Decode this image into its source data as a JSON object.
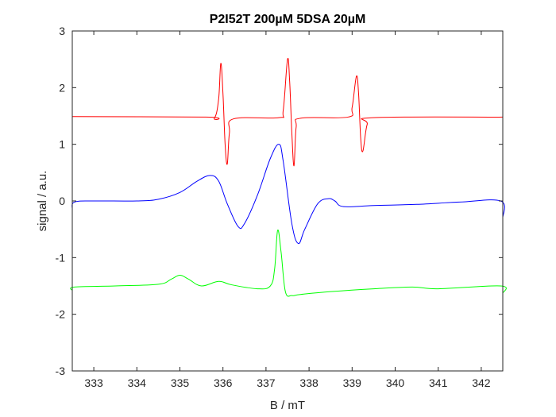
{
  "chart_data": {
    "type": "line",
    "title": "P2I52T 200µM 5DSA 20µM",
    "xlabel": "B / mT",
    "ylabel": "signal / a.u.",
    "xlim": [
      332.5,
      342.5
    ],
    "ylim": [
      -3,
      3
    ],
    "xticks": [
      333,
      334,
      335,
      336,
      337,
      338,
      339,
      340,
      341,
      342
    ],
    "yticks": [
      3,
      2,
      1,
      0,
      -1,
      -2,
      -3
    ],
    "grid": false,
    "legend": null,
    "series": [
      {
        "color": "#ff0000",
        "points": [
          [
            332.5,
            1.49
          ],
          [
            335.6,
            1.48
          ],
          [
            335.8,
            1.46
          ],
          [
            335.9,
            1.8
          ],
          [
            335.95,
            2.43
          ],
          [
            336.0,
            1.9
          ],
          [
            336.05,
            1.0
          ],
          [
            336.1,
            0.65
          ],
          [
            336.15,
            1.2
          ],
          [
            336.25,
            1.45
          ],
          [
            337.3,
            1.47
          ],
          [
            337.4,
            1.6
          ],
          [
            337.5,
            2.5
          ],
          [
            337.55,
            2.1
          ],
          [
            337.6,
            1.2
          ],
          [
            337.65,
            0.62
          ],
          [
            337.7,
            1.3
          ],
          [
            337.8,
            1.46
          ],
          [
            338.9,
            1.48
          ],
          [
            339.0,
            1.65
          ],
          [
            339.1,
            2.2
          ],
          [
            339.15,
            1.9
          ],
          [
            339.2,
            1.1
          ],
          [
            339.25,
            0.88
          ],
          [
            339.35,
            1.35
          ],
          [
            339.5,
            1.47
          ],
          [
            342.5,
            1.48
          ]
        ]
      },
      {
        "color": "#0000ff",
        "points": [
          [
            332.5,
            -0.15
          ],
          [
            332.55,
            -0.02
          ],
          [
            333.0,
            0.0
          ],
          [
            334.0,
            0.0
          ],
          [
            334.5,
            0.03
          ],
          [
            335.0,
            0.15
          ],
          [
            335.4,
            0.35
          ],
          [
            335.7,
            0.45
          ],
          [
            335.9,
            0.35
          ],
          [
            336.1,
            -0.05
          ],
          [
            336.35,
            -0.45
          ],
          [
            336.5,
            -0.4
          ],
          [
            336.8,
            0.1
          ],
          [
            337.1,
            0.75
          ],
          [
            337.3,
            1.0
          ],
          [
            337.4,
            0.7
          ],
          [
            337.6,
            -0.4
          ],
          [
            337.75,
            -0.75
          ],
          [
            337.9,
            -0.5
          ],
          [
            338.2,
            -0.05
          ],
          [
            338.45,
            0.04
          ],
          [
            338.6,
            0.0
          ],
          [
            338.8,
            -0.1
          ],
          [
            339.5,
            -0.08
          ],
          [
            340.5,
            -0.06
          ],
          [
            341.5,
            -0.02
          ],
          [
            342.45,
            0.0
          ],
          [
            342.5,
            -0.3
          ]
        ]
      },
      {
        "color": "#00ff00",
        "points": [
          [
            332.5,
            -1.58
          ],
          [
            332.55,
            -1.52
          ],
          [
            333.5,
            -1.5
          ],
          [
            334.5,
            -1.47
          ],
          [
            334.8,
            -1.38
          ],
          [
            335.0,
            -1.31
          ],
          [
            335.2,
            -1.38
          ],
          [
            335.5,
            -1.5
          ],
          [
            335.9,
            -1.42
          ],
          [
            336.2,
            -1.48
          ],
          [
            336.8,
            -1.55
          ],
          [
            337.1,
            -1.5
          ],
          [
            337.2,
            -1.2
          ],
          [
            337.27,
            -0.52
          ],
          [
            337.35,
            -0.9
          ],
          [
            337.45,
            -1.6
          ],
          [
            337.6,
            -1.67
          ],
          [
            337.8,
            -1.65
          ],
          [
            338.5,
            -1.6
          ],
          [
            339.5,
            -1.55
          ],
          [
            340.4,
            -1.52
          ],
          [
            341.0,
            -1.55
          ],
          [
            342.45,
            -1.5
          ],
          [
            342.5,
            -1.63
          ]
        ]
      }
    ]
  }
}
